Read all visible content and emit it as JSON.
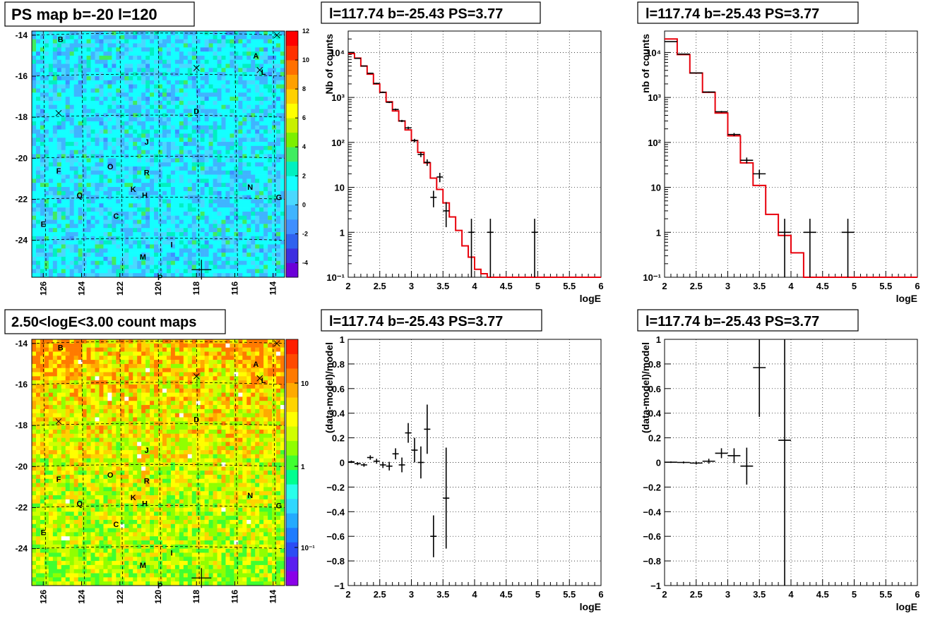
{
  "colors": {
    "model": "#e8000b",
    "data": "#000000",
    "grid": "#000000"
  },
  "panels": {
    "ps_map": {
      "title": "PS map b=-20 l=120",
      "colorbar_ticks": [
        "12",
        "10",
        "8",
        "6",
        "4",
        "2",
        "0",
        "-2",
        "-4"
      ],
      "colorbar_range": [
        -5,
        12
      ]
    },
    "count_map": {
      "title": "2.50<logE<3.00 count maps",
      "colorbar_ticks": [
        "10",
        "1",
        "10⁻¹"
      ]
    },
    "spec1": {
      "title": "l=117.74 b=-25.43 PS=3.77"
    },
    "spec2": {
      "title": "l=117.74 b=-25.43 PS=3.77"
    },
    "res1": {
      "title": "l=117.74 b=-25.43 PS=3.77"
    },
    "res2": {
      "title": "l=117.74 b=-25.43 PS=3.77"
    }
  },
  "sky_maps": {
    "y_ticks": [
      "-14",
      "-16",
      "-18",
      "-20",
      "-22",
      "-24"
    ],
    "y_tick_values": [
      -14,
      -16,
      -18,
      -20,
      -22,
      -24
    ],
    "y_range": [
      -25.8,
      -13.8
    ],
    "x_ticks": [
      "126",
      "124",
      "122",
      "120",
      "118",
      "116",
      "114"
    ],
    "x_tick_values": [
      126,
      124,
      122,
      120,
      118,
      116,
      114
    ],
    "x_range": [
      126.6,
      113.4
    ],
    "sources": [
      {
        "label": "B",
        "l": 125.1,
        "b": -14.2
      },
      {
        "label": "A",
        "l": 114.9,
        "b": -15.0
      },
      {
        "label": "L",
        "l": 114.5,
        "b": -15.8
      },
      {
        "label": "D",
        "l": 118.0,
        "b": -17.7
      },
      {
        "label": "J",
        "l": 120.6,
        "b": -19.2
      },
      {
        "label": "F",
        "l": 125.2,
        "b": -20.6
      },
      {
        "label": "O",
        "l": 122.5,
        "b": -20.4
      },
      {
        "label": "R",
        "l": 120.6,
        "b": -20.7
      },
      {
        "label": "N",
        "l": 115.2,
        "b": -21.4
      },
      {
        "label": "K",
        "l": 121.3,
        "b": -21.5
      },
      {
        "label": "H",
        "l": 120.7,
        "b": -21.8
      },
      {
        "label": "Q",
        "l": 124.1,
        "b": -21.8
      },
      {
        "label": "G",
        "l": 113.7,
        "b": -21.9
      },
      {
        "label": "C",
        "l": 122.2,
        "b": -22.8
      },
      {
        "label": "E",
        "l": 126.0,
        "b": -23.2
      },
      {
        "label": "I",
        "l": 119.3,
        "b": -24.2
      },
      {
        "label": "M",
        "l": 120.8,
        "b": -24.8
      },
      {
        "label": "P",
        "l": 119.9,
        "b": -25.8
      }
    ],
    "cross_markers": [
      {
        "l": 113.8,
        "b": -14.0
      },
      {
        "l": 118.0,
        "b": -15.6
      },
      {
        "l": 114.7,
        "b": -15.7
      },
      {
        "l": 125.2,
        "b": -17.8
      }
    ],
    "target": {
      "l": 117.74,
      "b": -25.43
    }
  },
  "chart_data": [
    {
      "type": "line",
      "panel": "spec1",
      "xlabel": "logE",
      "ylabel": "Nb of counts",
      "xlim": [
        2,
        6
      ],
      "ylim": [
        0.1,
        30000
      ],
      "yscale": "log",
      "x_ticks": [
        "2",
        "2.5",
        "3",
        "3.5",
        "4",
        "4.5",
        "5",
        "5.5",
        "6"
      ],
      "y_ticks": [
        "10⁻¹",
        "1",
        "10",
        "10²",
        "10³",
        "10⁴"
      ],
      "series": [
        {
          "role": "model_step",
          "color": "#e8000b",
          "bin_edges": [
            2.0,
            2.1,
            2.2,
            2.3,
            2.4,
            2.5,
            2.6,
            2.7,
            2.8,
            2.9,
            3.0,
            3.1,
            3.2,
            3.3,
            3.4,
            3.5,
            3.6,
            3.7,
            3.8,
            3.9,
            4.0,
            4.1,
            4.2,
            6.0
          ],
          "values": [
            9500,
            7500,
            5000,
            3300,
            2000,
            1300,
            800,
            500,
            300,
            190,
            110,
            60,
            35,
            16,
            9,
            4.5,
            2.2,
            1.1,
            0.5,
            0.28,
            0.15,
            0.12,
            0.1
          ]
        },
        {
          "role": "data_points",
          "color": "#000000",
          "points": [
            {
              "x": 2.05,
              "y": 10000,
              "xerr": 0.05,
              "ylo": 9800,
              "yhi": 10200
            },
            {
              "x": 2.15,
              "y": 7400,
              "xerr": 0.05,
              "ylo": 7250,
              "yhi": 7550
            },
            {
              "x": 2.25,
              "y": 5000,
              "xerr": 0.05,
              "ylo": 4900,
              "yhi": 5100
            },
            {
              "x": 2.35,
              "y": 3450,
              "xerr": 0.05,
              "ylo": 3350,
              "yhi": 3550
            },
            {
              "x": 2.45,
              "y": 2050,
              "xerr": 0.05,
              "ylo": 1980,
              "yhi": 2120
            },
            {
              "x": 2.55,
              "y": 1300,
              "xerr": 0.05,
              "ylo": 1250,
              "yhi": 1350
            },
            {
              "x": 2.65,
              "y": 780,
              "xerr": 0.05,
              "ylo": 750,
              "yhi": 810
            },
            {
              "x": 2.75,
              "y": 540,
              "xerr": 0.05,
              "ylo": 515,
              "yhi": 565
            },
            {
              "x": 2.85,
              "y": 300,
              "xerr": 0.05,
              "ylo": 283,
              "yhi": 317
            },
            {
              "x": 2.95,
              "y": 210,
              "xerr": 0.05,
              "ylo": 196,
              "yhi": 224
            },
            {
              "x": 3.05,
              "y": 110,
              "xerr": 0.05,
              "ylo": 100,
              "yhi": 120
            },
            {
              "x": 3.15,
              "y": 54,
              "xerr": 0.05,
              "ylo": 47,
              "yhi": 61
            },
            {
              "x": 3.25,
              "y": 36,
              "xerr": 0.05,
              "ylo": 30,
              "yhi": 42
            },
            {
              "x": 3.35,
              "y": 6,
              "xerr": 0.05,
              "ylo": 3.6,
              "yhi": 8.4
            },
            {
              "x": 3.45,
              "y": 17,
              "xerr": 0.05,
              "ylo": 13,
              "yhi": 21
            },
            {
              "x": 3.55,
              "y": 3,
              "xerr": 0.05,
              "ylo": 1.3,
              "yhi": 4.7
            },
            {
              "x": 3.95,
              "y": 1,
              "xerr": 0.05,
              "ylo": 0.1,
              "yhi": 2
            },
            {
              "x": 4.25,
              "y": 1,
              "xerr": 0.05,
              "ylo": 0.1,
              "yhi": 2
            },
            {
              "x": 4.95,
              "y": 1,
              "xerr": 0.05,
              "ylo": 0.1,
              "yhi": 2
            }
          ]
        }
      ]
    },
    {
      "type": "line",
      "panel": "spec2",
      "xlabel": "logE",
      "ylabel": "nb of counts",
      "xlim": [
        2,
        6
      ],
      "ylim": [
        0.1,
        30000
      ],
      "yscale": "log",
      "x_ticks": [
        "2",
        "2.5",
        "3",
        "3.5",
        "4",
        "4.5",
        "5",
        "5.5",
        "6"
      ],
      "y_ticks": [
        "10⁻¹",
        "1",
        "10",
        "10²",
        "10³",
        "10⁴"
      ],
      "series": [
        {
          "role": "model_step",
          "color": "#e8000b",
          "bin_edges": [
            2.0,
            2.2,
            2.4,
            2.6,
            2.8,
            3.0,
            3.2,
            3.4,
            3.6,
            3.8,
            4.0,
            4.2,
            6.0
          ],
          "values": [
            20000,
            9000,
            3500,
            1300,
            450,
            140,
            35,
            11,
            2.5,
            0.85,
            0.35,
            0.1
          ]
        },
        {
          "role": "data_points",
          "color": "#000000",
          "points": [
            {
              "x": 2.1,
              "y": 17500,
              "xerr": 0.1,
              "ylo": 17300,
              "yhi": 17700
            },
            {
              "x": 2.3,
              "y": 9200,
              "xerr": 0.1,
              "ylo": 9050,
              "yhi": 9350
            },
            {
              "x": 2.5,
              "y": 3500,
              "xerr": 0.1,
              "ylo": 3420,
              "yhi": 3580
            },
            {
              "x": 2.7,
              "y": 1320,
              "xerr": 0.1,
              "ylo": 1280,
              "yhi": 1360
            },
            {
              "x": 2.9,
              "y": 480,
              "xerr": 0.1,
              "ylo": 460,
              "yhi": 500
            },
            {
              "x": 3.1,
              "y": 150,
              "xerr": 0.1,
              "ylo": 138,
              "yhi": 162
            },
            {
              "x": 3.3,
              "y": 40,
              "xerr": 0.1,
              "ylo": 34,
              "yhi": 46
            },
            {
              "x": 3.5,
              "y": 20,
              "xerr": 0.1,
              "ylo": 15.5,
              "yhi": 24.5
            },
            {
              "x": 3.9,
              "y": 1,
              "xerr": 0.1,
              "ylo": 0.1,
              "yhi": 2
            },
            {
              "x": 4.3,
              "y": 1,
              "xerr": 0.1,
              "ylo": 0.1,
              "yhi": 2
            },
            {
              "x": 4.9,
              "y": 1,
              "xerr": 0.1,
              "ylo": 0.1,
              "yhi": 2
            }
          ]
        }
      ]
    },
    {
      "type": "scatter",
      "panel": "res1",
      "xlabel": "logE",
      "ylabel": "(data-model)/model",
      "xlim": [
        2,
        6
      ],
      "ylim": [
        -1,
        1
      ],
      "x_ticks": [
        "2",
        "2.5",
        "3",
        "3.5",
        "4",
        "4.5",
        "5",
        "5.5",
        "6"
      ],
      "y_ticks": [
        "−1",
        "−0.8",
        "−0.6",
        "−0.4",
        "−0.2",
        "0",
        "0.2",
        "0.4",
        "0.6",
        "0.8",
        "1"
      ],
      "y_tick_values": [
        -1,
        -0.8,
        -0.6,
        -0.4,
        -0.2,
        0,
        0.2,
        0.4,
        0.6,
        0.8,
        1
      ],
      "series": [
        {
          "role": "data_points",
          "color": "#000000",
          "points": [
            {
              "x": 2.05,
              "y": 0.005,
              "xerr": 0.05,
              "yerr": 0.01
            },
            {
              "x": 2.15,
              "y": -0.01,
              "xerr": 0.05,
              "yerr": 0.012
            },
            {
              "x": 2.25,
              "y": -0.02,
              "xerr": 0.05,
              "yerr": 0.015
            },
            {
              "x": 2.35,
              "y": 0.04,
              "xerr": 0.05,
              "yerr": 0.018
            },
            {
              "x": 2.45,
              "y": 0.01,
              "xerr": 0.05,
              "yerr": 0.02
            },
            {
              "x": 2.55,
              "y": -0.02,
              "xerr": 0.05,
              "yerr": 0.025
            },
            {
              "x": 2.65,
              "y": -0.03,
              "xerr": 0.05,
              "yerr": 0.035
            },
            {
              "x": 2.75,
              "y": 0.07,
              "xerr": 0.05,
              "yerr": 0.045
            },
            {
              "x": 2.85,
              "y": -0.02,
              "xerr": 0.05,
              "yerr": 0.06
            },
            {
              "x": 2.95,
              "y": 0.24,
              "xerr": 0.05,
              "yerr": 0.08
            },
            {
              "x": 3.05,
              "y": 0.1,
              "xerr": 0.05,
              "yerr": 0.1
            },
            {
              "x": 3.15,
              "y": 0.0,
              "xerr": 0.05,
              "yerr": 0.13
            },
            {
              "x": 3.25,
              "y": 0.27,
              "xerr": 0.05,
              "yerr": 0.2
            },
            {
              "x": 3.35,
              "y": -0.6,
              "xerr": 0.05,
              "yerr": 0.17
            },
            {
              "x": 3.55,
              "y": -0.29,
              "xerr": 0.05,
              "yerr": 0.41
            }
          ]
        }
      ]
    },
    {
      "type": "scatter",
      "panel": "res2",
      "xlabel": "logE",
      "ylabel": "(data-model)/model",
      "xlim": [
        2,
        6
      ],
      "ylim": [
        -1,
        1
      ],
      "x_ticks": [
        "2",
        "2.5",
        "3",
        "3.5",
        "4",
        "4.5",
        "5",
        "5.5",
        "6"
      ],
      "y_ticks": [
        "−1",
        "−0.8",
        "−0.6",
        "−0.4",
        "−0.2",
        "0",
        "0.2",
        "0.4",
        "0.6",
        "0.8",
        "1"
      ],
      "y_tick_values": [
        -1,
        -0.8,
        -0.6,
        -0.4,
        -0.2,
        0,
        0.2,
        0.4,
        0.6,
        0.8,
        1
      ],
      "series": [
        {
          "role": "data_points",
          "color": "#000000",
          "points": [
            {
              "x": 2.1,
              "y": 0.002,
              "xerr": 0.1,
              "yerr": 0.006
            },
            {
              "x": 2.3,
              "y": 0.0,
              "xerr": 0.1,
              "yerr": 0.008
            },
            {
              "x": 2.5,
              "y": -0.005,
              "xerr": 0.1,
              "yerr": 0.012
            },
            {
              "x": 2.7,
              "y": 0.01,
              "xerr": 0.1,
              "yerr": 0.02
            },
            {
              "x": 2.9,
              "y": 0.075,
              "xerr": 0.1,
              "yerr": 0.04
            },
            {
              "x": 3.1,
              "y": 0.055,
              "xerr": 0.1,
              "yerr": 0.06
            },
            {
              "x": 3.3,
              "y": -0.03,
              "xerr": 0.1,
              "yerr": 0.15
            },
            {
              "x": 3.5,
              "y": 0.77,
              "xerr": 0.1,
              "yerr": 0.4
            },
            {
              "x": 3.9,
              "y": 0.18,
              "xerr": 0.1,
              "yerr": 1.2
            }
          ]
        }
      ]
    }
  ]
}
